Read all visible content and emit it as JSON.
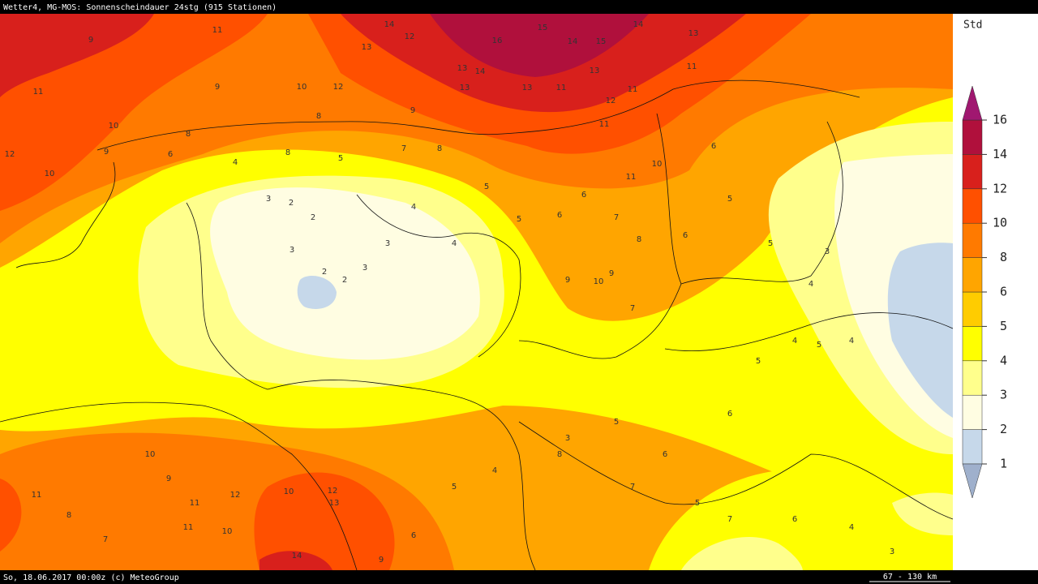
{
  "header": {
    "title": "Wetter4, MG-MOS: Sonnenscheindauer 24stg (915 Stationen)"
  },
  "footer": {
    "left": "So, 18.06.2017 00:00z (c) MeteoGroup",
    "scale": "67 - 130 km"
  },
  "legend": {
    "unit": "Std",
    "levels": [
      1,
      2,
      3,
      4,
      5,
      6,
      8,
      10,
      12,
      14,
      16
    ],
    "colors": [
      "#9fb0cc",
      "#c6d8ea",
      "#fffde2",
      "#ffff8c",
      "#ffff00",
      "#ffcc00",
      "#ffa500",
      "#ff7a00",
      "#ff5000",
      "#d8201c",
      "#b0103c",
      "#a01870"
    ]
  },
  "stations": [
    9,
    11,
    11,
    9,
    10,
    12,
    10,
    8,
    13,
    14,
    12,
    13,
    16,
    15,
    14,
    15,
    14,
    13,
    13,
    14,
    13,
    11,
    8,
    9,
    12,
    10,
    9,
    11,
    13,
    12,
    11,
    11,
    11,
    10,
    8,
    7,
    8,
    6,
    5,
    4,
    3,
    2,
    2,
    3,
    2,
    2,
    3,
    3,
    4,
    4,
    5,
    5,
    6,
    6,
    7,
    8,
    9,
    10,
    9,
    7,
    6,
    6,
    5,
    5,
    4,
    4,
    3,
    4,
    5,
    5,
    6,
    7,
    8,
    10,
    11,
    12,
    13,
    14,
    11,
    9,
    10,
    11,
    8,
    7,
    6,
    5,
    4,
    3,
    5,
    6,
    7,
    5,
    6,
    4,
    3,
    10,
    12,
    9
  ]
}
